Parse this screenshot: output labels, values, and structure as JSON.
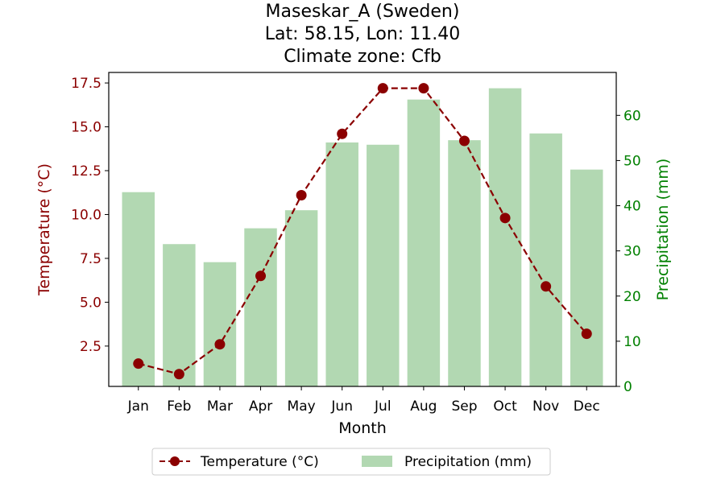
{
  "chart_data": {
    "type": "bar+line",
    "title_lines": [
      "Maseskar_A (Sweden)",
      "Lat: 58.15, Lon: 11.40",
      "Climate zone: Cfb"
    ],
    "xlabel": "Month",
    "ylabel_left": "Temperature (°C)",
    "ylabel_right": "Precipitation (mm)",
    "categories": [
      "Jan",
      "Feb",
      "Mar",
      "Apr",
      "May",
      "Jun",
      "Jul",
      "Aug",
      "Sep",
      "Oct",
      "Nov",
      "Dec"
    ],
    "temperature": [
      1.5,
      0.9,
      2.6,
      6.5,
      11.1,
      14.6,
      17.2,
      17.2,
      14.2,
      9.8,
      5.9,
      3.2
    ],
    "precipitation": [
      43,
      31.5,
      27.5,
      35,
      39,
      54,
      53.5,
      63.5,
      54.5,
      66,
      56,
      48
    ],
    "ylim_left": [
      0.2,
      18.1
    ],
    "ylim_right": [
      0,
      69.5
    ],
    "yticks_left": [
      "2.5",
      "5.0",
      "7.5",
      "10.0",
      "12.5",
      "15.0",
      "17.5"
    ],
    "yticks_right": [
      "0",
      "10",
      "20",
      "30",
      "40",
      "50",
      "60"
    ],
    "legend": {
      "placement": "bottom-center",
      "temperature_label": "Temperature (°C)",
      "precipitation_label": "Precipitation (mm)"
    },
    "colors": {
      "temperature": "#8b0000",
      "precipitation": "#b2d8b2",
      "right_axis": "#008000"
    },
    "grid": false
  }
}
